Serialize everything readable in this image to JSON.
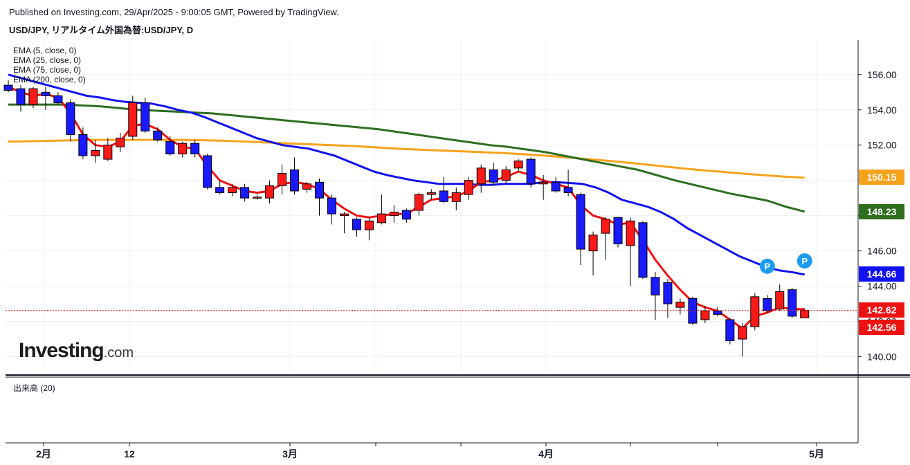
{
  "header": {
    "published": "Published on Investing.com, 29/Apr/2025 - 9:00:05 GMT, Powered by TradingView.",
    "symbol": "USD/JPY, リアルタイム外国為替:USD/JPY, D"
  },
  "indicators": [
    {
      "label": "EMA (5, close, 0)"
    },
    {
      "label": "EMA (25, close, 0)"
    },
    {
      "label": "EMA (75, close, 0)"
    },
    {
      "label": "EMA (200, close, 0)"
    }
  ],
  "volume_label": "出来高 (20)",
  "logo": {
    "main": "Investing",
    "suffix": ".com"
  },
  "colors": {
    "up": "#ff1a1a",
    "down": "#1a1aff",
    "ema5": "#ee1111",
    "ema25": "#1111ee",
    "ema75": "#2e6e1e",
    "ema200": "#f7a21b",
    "last_line": "#ee1111",
    "marker": "#1c9cf0"
  },
  "chart_data": {
    "type": "candlestick",
    "title": "USD/JPY, リアルタイム外国為替:USD/JPY, D",
    "ylim": [
      138.9,
      157.8
    ],
    "y_ticks": [
      "140.00",
      "142.00",
      "144.00",
      "146.00",
      "148.00",
      "150.00",
      "152.00",
      "154.00",
      "156.00"
    ],
    "x_ticks": [
      {
        "label": "2月",
        "bold": true
      },
      {
        "label": "12",
        "bold": false
      },
      {
        "label": "3月",
        "bold": true
      },
      {
        "label": "4月",
        "bold": true
      },
      {
        "label": "5月",
        "bold": true
      }
    ],
    "grid": true,
    "candles": [
      {
        "o": 155.4,
        "h": 155.7,
        "l": 155.0,
        "c": 155.1
      },
      {
        "o": 155.2,
        "h": 155.4,
        "l": 153.9,
        "c": 154.3
      },
      {
        "o": 154.3,
        "h": 155.3,
        "l": 154.1,
        "c": 155.2
      },
      {
        "o": 155.0,
        "h": 155.3,
        "l": 154.0,
        "c": 154.8
      },
      {
        "o": 154.8,
        "h": 155.0,
        "l": 154.3,
        "c": 154.4
      },
      {
        "o": 154.4,
        "h": 154.6,
        "l": 152.2,
        "c": 152.6
      },
      {
        "o": 152.6,
        "h": 153.0,
        "l": 151.2,
        "c": 151.4
      },
      {
        "o": 151.4,
        "h": 152.3,
        "l": 151.0,
        "c": 151.7
      },
      {
        "o": 151.2,
        "h": 152.4,
        "l": 151.1,
        "c": 152.0
      },
      {
        "o": 151.9,
        "h": 152.7,
        "l": 151.6,
        "c": 152.4
      },
      {
        "o": 152.5,
        "h": 154.8,
        "l": 152.3,
        "c": 154.4
      },
      {
        "o": 154.4,
        "h": 154.7,
        "l": 152.7,
        "c": 152.8
      },
      {
        "o": 152.8,
        "h": 153.0,
        "l": 152.2,
        "c": 152.3
      },
      {
        "o": 152.2,
        "h": 152.5,
        "l": 151.4,
        "c": 151.5
      },
      {
        "o": 151.5,
        "h": 152.2,
        "l": 151.3,
        "c": 152.1
      },
      {
        "o": 152.1,
        "h": 152.3,
        "l": 151.3,
        "c": 151.5
      },
      {
        "o": 151.4,
        "h": 151.5,
        "l": 149.5,
        "c": 149.6
      },
      {
        "o": 149.6,
        "h": 150.0,
        "l": 149.2,
        "c": 149.3
      },
      {
        "o": 149.3,
        "h": 149.8,
        "l": 149.1,
        "c": 149.6
      },
      {
        "o": 149.6,
        "h": 149.8,
        "l": 148.8,
        "c": 149.0
      },
      {
        "o": 149.0,
        "h": 149.2,
        "l": 148.9,
        "c": 149.05
      },
      {
        "o": 149.0,
        "h": 150.0,
        "l": 148.7,
        "c": 149.7
      },
      {
        "o": 149.7,
        "h": 150.9,
        "l": 149.2,
        "c": 150.4
      },
      {
        "o": 150.6,
        "h": 151.3,
        "l": 149.2,
        "c": 149.4
      },
      {
        "o": 149.5,
        "h": 149.9,
        "l": 149.3,
        "c": 149.8
      },
      {
        "o": 149.9,
        "h": 150.1,
        "l": 148.0,
        "c": 149.0
      },
      {
        "o": 149.0,
        "h": 149.2,
        "l": 147.5,
        "c": 148.1
      },
      {
        "o": 148.0,
        "h": 148.2,
        "l": 147.0,
        "c": 148.1
      },
      {
        "o": 147.8,
        "h": 147.9,
        "l": 146.8,
        "c": 147.2
      },
      {
        "o": 147.2,
        "h": 147.9,
        "l": 146.6,
        "c": 147.7
      },
      {
        "o": 147.6,
        "h": 149.2,
        "l": 147.5,
        "c": 148.1
      },
      {
        "o": 148.0,
        "h": 148.6,
        "l": 147.6,
        "c": 148.2
      },
      {
        "o": 148.3,
        "h": 148.4,
        "l": 147.6,
        "c": 147.8
      },
      {
        "o": 148.3,
        "h": 149.3,
        "l": 148.0,
        "c": 149.2
      },
      {
        "o": 149.2,
        "h": 149.5,
        "l": 148.9,
        "c": 149.3
      },
      {
        "o": 149.4,
        "h": 150.2,
        "l": 148.7,
        "c": 148.8
      },
      {
        "o": 148.8,
        "h": 149.6,
        "l": 148.3,
        "c": 149.3
      },
      {
        "o": 149.2,
        "h": 150.2,
        "l": 148.9,
        "c": 150.0
      },
      {
        "o": 149.8,
        "h": 150.9,
        "l": 149.3,
        "c": 150.7
      },
      {
        "o": 150.6,
        "h": 151.0,
        "l": 149.7,
        "c": 149.9
      },
      {
        "o": 150.0,
        "h": 150.8,
        "l": 149.8,
        "c": 150.6
      },
      {
        "o": 150.7,
        "h": 151.2,
        "l": 150.5,
        "c": 151.1
      },
      {
        "o": 151.2,
        "h": 151.3,
        "l": 149.6,
        "c": 149.8
      },
      {
        "o": 149.8,
        "h": 150.3,
        "l": 148.9,
        "c": 149.9
      },
      {
        "o": 149.9,
        "h": 150.2,
        "l": 149.3,
        "c": 149.4
      },
      {
        "o": 149.6,
        "h": 150.6,
        "l": 149.1,
        "c": 149.3
      },
      {
        "o": 149.2,
        "h": 149.3,
        "l": 145.2,
        "c": 146.1
      },
      {
        "o": 146.0,
        "h": 147.1,
        "l": 144.6,
        "c": 146.9
      },
      {
        "o": 147.0,
        "h": 147.9,
        "l": 145.5,
        "c": 147.8
      },
      {
        "o": 147.9,
        "h": 147.9,
        "l": 146.2,
        "c": 146.4
      },
      {
        "o": 146.3,
        "h": 147.9,
        "l": 144.0,
        "c": 147.7
      },
      {
        "o": 147.6,
        "h": 147.7,
        "l": 144.4,
        "c": 144.5
      },
      {
        "o": 144.5,
        "h": 144.8,
        "l": 142.1,
        "c": 143.5
      },
      {
        "o": 144.2,
        "h": 144.4,
        "l": 142.2,
        "c": 143.0
      },
      {
        "o": 142.8,
        "h": 143.3,
        "l": 142.4,
        "c": 143.1
      },
      {
        "o": 143.3,
        "h": 143.4,
        "l": 141.8,
        "c": 141.9
      },
      {
        "o": 142.1,
        "h": 142.9,
        "l": 141.9,
        "c": 142.6
      },
      {
        "o": 142.6,
        "h": 142.8,
        "l": 142.3,
        "c": 142.4
      },
      {
        "o": 142.1,
        "h": 142.2,
        "l": 140.7,
        "c": 140.9
      },
      {
        "o": 141.0,
        "h": 141.9,
        "l": 140.0,
        "c": 141.7
      },
      {
        "o": 141.7,
        "h": 143.6,
        "l": 141.5,
        "c": 143.4
      },
      {
        "o": 143.3,
        "h": 143.5,
        "l": 142.5,
        "c": 142.6
      },
      {
        "o": 142.7,
        "h": 144.1,
        "l": 142.6,
        "c": 143.7
      },
      {
        "o": 143.8,
        "h": 143.9,
        "l": 142.2,
        "c": 142.3
      },
      {
        "o": 142.2,
        "h": 142.7,
        "l": 142.2,
        "c": 142.62
      }
    ],
    "series": [
      {
        "name": "EMA (5, close, 0)",
        "key": "ema5",
        "values": [
          155.3,
          155.0,
          154.8,
          154.9,
          154.7,
          153.8,
          152.6,
          152.0,
          151.9,
          152.2,
          153.1,
          153.2,
          152.9,
          152.3,
          151.9,
          151.8,
          150.8,
          150.0,
          149.7,
          149.4,
          149.3,
          149.4,
          149.8,
          149.9,
          149.8,
          149.5,
          148.9,
          148.4,
          148.0,
          147.9,
          148.0,
          148.1,
          148.1,
          148.5,
          148.9,
          149.0,
          149.1,
          149.4,
          149.9,
          150.0,
          150.2,
          150.5,
          150.3,
          150.0,
          149.8,
          149.6,
          148.6,
          148.0,
          147.8,
          147.5,
          147.6,
          146.6,
          145.5,
          144.6,
          143.8,
          143.1,
          142.8,
          142.6,
          142.1,
          141.6,
          142.3,
          142.5,
          142.8,
          142.7,
          142.7
        ]
      },
      {
        "name": "EMA (25, close, 0)",
        "key": "ema25",
        "values": [
          156.0,
          155.8,
          155.6,
          155.4,
          155.2,
          155.0,
          154.8,
          154.7,
          154.55,
          154.45,
          154.4,
          154.35,
          154.2,
          154.0,
          153.85,
          153.6,
          153.3,
          153.0,
          152.7,
          152.4,
          152.2,
          152.0,
          151.9,
          151.8,
          151.6,
          151.4,
          151.1,
          150.8,
          150.5,
          150.3,
          150.15,
          150.0,
          149.9,
          149.8,
          149.8,
          149.8,
          149.75,
          149.75,
          149.8,
          149.8,
          149.8,
          149.9,
          149.9,
          149.85,
          149.8,
          149.6,
          149.3,
          148.9,
          148.7,
          148.5,
          148.2,
          147.8,
          147.3,
          146.9,
          146.5,
          146.1,
          145.7,
          145.4,
          145.1,
          144.9,
          144.8,
          144.66
        ]
      },
      {
        "name": "EMA (75, close, 0)",
        "key": "ema75",
        "values": [
          154.3,
          154.3,
          154.3,
          154.3,
          154.25,
          154.2,
          154.1,
          154.0,
          153.95,
          153.9,
          153.85,
          153.8,
          153.7,
          153.6,
          153.5,
          153.4,
          153.3,
          153.2,
          153.1,
          153.0,
          152.9,
          152.75,
          152.6,
          152.45,
          152.3,
          152.15,
          152.0,
          151.9,
          151.75,
          151.6,
          151.4,
          151.2,
          151.0,
          150.8,
          150.6,
          150.3,
          150.0,
          149.75,
          149.5,
          149.25,
          149.05,
          148.85,
          148.5,
          148.23
        ]
      },
      {
        "name": "EMA (200, close, 0)",
        "key": "ema200",
        "values": [
          152.2,
          152.22,
          152.25,
          152.27,
          152.3,
          152.3,
          152.3,
          152.3,
          152.3,
          152.28,
          152.25,
          152.2,
          152.15,
          152.1,
          152.05,
          152.0,
          151.95,
          151.88,
          151.8,
          151.75,
          151.7,
          151.65,
          151.6,
          151.55,
          151.48,
          151.4,
          151.3,
          151.2,
          151.1,
          150.98,
          150.85,
          150.72,
          150.6,
          150.5,
          150.4,
          150.3,
          150.22,
          150.15
        ]
      }
    ],
    "markers": [
      {
        "label": "P",
        "index": 61,
        "value": 144.7
      },
      {
        "label": "P",
        "index": 64,
        "value": 145.0
      }
    ],
    "price_tags": [
      {
        "label": "150.15",
        "value": 150.15,
        "color": "#f7a21b"
      },
      {
        "label": "148.23",
        "value": 148.23,
        "color": "#2e6e1e"
      },
      {
        "label": "144.66",
        "value": 144.66,
        "color": "#1111ee"
      },
      {
        "label": "142.62",
        "value": 142.62,
        "color": "#ee1111"
      },
      {
        "label": "142.56",
        "value": 142.56,
        "color": "#ee1111"
      }
    ],
    "last_price": 142.62
  }
}
